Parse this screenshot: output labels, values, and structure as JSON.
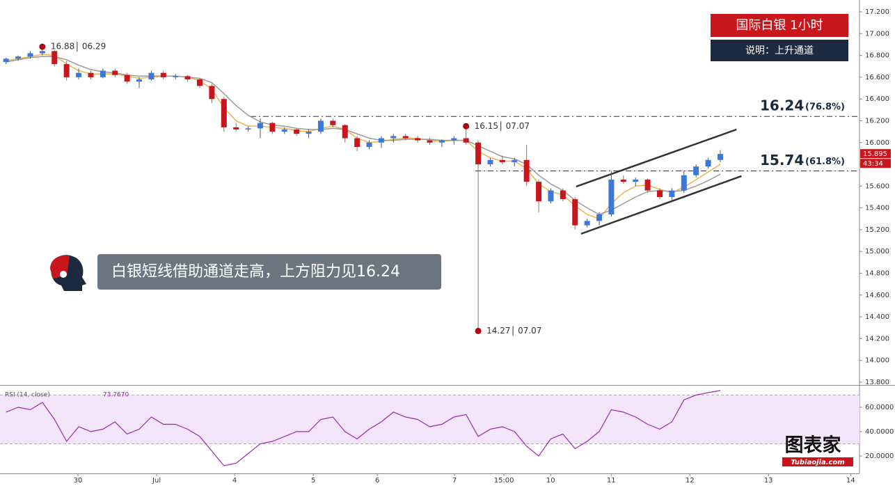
{
  "chart_data": [
    {
      "type": "candlestick",
      "xlim": [
        0,
        71
      ],
      "ylim": [
        13.774,
        17.309
      ],
      "x": [
        0.5,
        1.5,
        2.5,
        3.5,
        4.5,
        5.5,
        6.5,
        7.5,
        8.5,
        9.5,
        10.5,
        11.5,
        12.5,
        13.5,
        14.5,
        15.5,
        16.5,
        17.5,
        18.5,
        19.5,
        20.5,
        21.5,
        22.5,
        23.5,
        24.5,
        25.5,
        26.5,
        27.5,
        28.5,
        29.5,
        30.5,
        31.5,
        32.5,
        33.5,
        34.5,
        35.5,
        36.5,
        37.5,
        38.5,
        39.5,
        40.5,
        41.5,
        42.5,
        43.5,
        44.5,
        45.5,
        46.5,
        47.5,
        48.5,
        49.5,
        50.5,
        51.5,
        52.5,
        53.5,
        54.5,
        55.5,
        56.5,
        57.5,
        58.5,
        59.5
      ],
      "open": [
        16.74,
        16.77,
        16.79,
        16.82,
        16.84,
        16.72,
        16.6,
        16.64,
        16.6,
        16.66,
        16.62,
        16.56,
        16.58,
        16.64,
        16.6,
        16.61,
        16.58,
        16.52,
        16.4,
        16.14,
        16.12,
        16.13,
        16.18,
        16.1,
        16.12,
        16.08,
        16.1,
        16.2,
        16.16,
        16.04,
        15.96,
        16.0,
        16.04,
        16.06,
        16.04,
        16.02,
        16.0,
        16.02,
        16.04,
        16.0,
        15.8,
        15.84,
        15.82,
        15.84,
        15.64,
        15.46,
        15.56,
        15.48,
        15.24,
        15.28,
        15.34,
        15.66,
        15.64,
        15.66,
        15.56,
        15.5,
        15.56,
        15.7,
        15.78,
        15.84
      ],
      "high": [
        16.78,
        16.8,
        16.84,
        16.88,
        16.85,
        16.75,
        16.68,
        16.66,
        16.68,
        16.68,
        16.64,
        16.6,
        16.66,
        16.66,
        16.63,
        16.62,
        16.59,
        16.54,
        16.42,
        16.18,
        16.15,
        16.22,
        16.19,
        16.14,
        16.13,
        16.12,
        16.22,
        16.22,
        16.17,
        16.06,
        16.02,
        16.06,
        16.08,
        16.08,
        16.06,
        16.04,
        16.03,
        16.06,
        16.15,
        16.02,
        15.86,
        15.88,
        15.86,
        15.98,
        15.66,
        15.58,
        15.58,
        15.5,
        15.3,
        15.36,
        15.74,
        15.7,
        15.68,
        15.67,
        15.58,
        15.58,
        15.74,
        15.8,
        15.86,
        15.93
      ],
      "low": [
        16.72,
        16.75,
        16.77,
        16.8,
        16.7,
        16.57,
        16.58,
        16.58,
        16.59,
        16.6,
        16.54,
        16.5,
        16.57,
        16.58,
        16.58,
        16.56,
        16.5,
        16.36,
        16.1,
        16.1,
        16.1,
        16.04,
        16.08,
        16.08,
        16.06,
        16.04,
        16.08,
        16.14,
        16.0,
        15.92,
        15.94,
        15.95,
        16.0,
        16.02,
        16.0,
        15.98,
        15.96,
        15.98,
        15.98,
        14.27,
        15.78,
        15.8,
        15.78,
        15.6,
        15.36,
        15.44,
        15.46,
        15.2,
        15.22,
        15.24,
        15.32,
        15.62,
        15.6,
        15.54,
        15.48,
        15.46,
        15.54,
        15.68,
        15.76,
        15.82
      ],
      "close": [
        16.77,
        16.79,
        16.82,
        16.84,
        16.72,
        16.6,
        16.64,
        16.6,
        16.66,
        16.62,
        16.56,
        16.58,
        16.64,
        16.6,
        16.61,
        16.58,
        16.52,
        16.4,
        16.14,
        16.12,
        16.13,
        16.18,
        16.1,
        16.12,
        16.08,
        16.1,
        16.2,
        16.16,
        16.04,
        15.96,
        16.0,
        16.04,
        16.06,
        16.04,
        16.02,
        16.0,
        16.02,
        16.04,
        16.0,
        15.8,
        15.84,
        15.82,
        15.84,
        15.64,
        15.46,
        15.56,
        15.48,
        15.24,
        15.28,
        15.34,
        15.66,
        15.64,
        15.66,
        15.56,
        15.5,
        15.56,
        15.7,
        15.78,
        15.84,
        15.895
      ],
      "up_color": "#3c78d8",
      "down_color": "#c8161d",
      "series": [
        {
          "color": "#f2b34c",
          "values": [
            16.75,
            16.77,
            16.79,
            16.81,
            16.8,
            16.72,
            16.66,
            16.63,
            16.63,
            16.63,
            16.61,
            16.59,
            16.6,
            16.61,
            16.61,
            16.6,
            16.57,
            16.49,
            16.32,
            16.2,
            16.15,
            16.15,
            16.14,
            16.13,
            16.11,
            16.1,
            16.13,
            16.15,
            16.12,
            16.04,
            16.0,
            16.01,
            16.03,
            16.04,
            16.04,
            16.02,
            16.01,
            16.02,
            16.02,
            15.92,
            15.86,
            15.83,
            15.83,
            15.76,
            15.62,
            15.55,
            15.52,
            15.42,
            15.34,
            15.3,
            15.44,
            15.54,
            15.6,
            15.61,
            15.57,
            15.54,
            15.59,
            15.66,
            15.73,
            15.8
          ]
        },
        {
          "color": "#9a9a9a",
          "values": [
            16.74,
            16.76,
            16.78,
            16.79,
            16.79,
            16.76,
            16.71,
            16.67,
            16.65,
            16.64,
            16.62,
            16.61,
            16.61,
            16.61,
            16.61,
            16.6,
            16.59,
            16.55,
            16.45,
            16.34,
            16.25,
            16.19,
            16.16,
            16.15,
            16.13,
            16.12,
            16.12,
            16.13,
            16.12,
            16.08,
            16.04,
            16.02,
            16.02,
            16.03,
            16.03,
            16.03,
            16.02,
            16.02,
            16.02,
            15.97,
            15.92,
            15.87,
            15.85,
            15.8,
            15.7,
            15.62,
            15.56,
            15.47,
            15.4,
            15.34,
            15.38,
            15.44,
            15.5,
            15.55,
            15.56,
            15.55,
            15.56,
            15.6,
            15.65,
            15.71
          ]
        }
      ],
      "yticks": [
        {
          "value": 17.2,
          "label": "17.200"
        },
        {
          "value": 17.0,
          "label": "17.000"
        },
        {
          "value": 16.8,
          "label": "16.800"
        },
        {
          "value": 16.6,
          "label": "16.600"
        },
        {
          "value": 16.4,
          "label": "16.400"
        },
        {
          "value": 16.2,
          "label": "16.200"
        },
        {
          "value": 16.0,
          "label": "16.000"
        },
        {
          "value": 15.8,
          "label": "15.800"
        },
        {
          "value": 15.6,
          "label": "15.600"
        },
        {
          "value": 15.4,
          "label": "15.400"
        },
        {
          "value": 15.2,
          "label": "15.200"
        },
        {
          "value": 15.0,
          "label": "15.000"
        },
        {
          "value": 14.8,
          "label": "14.800"
        },
        {
          "value": 14.6,
          "label": "14.600"
        },
        {
          "value": 14.4,
          "label": "14.400"
        },
        {
          "value": 14.2,
          "label": "14.200"
        },
        {
          "value": 14.0,
          "label": "14.000"
        },
        {
          "value": 13.8,
          "label": "13.800"
        }
      ],
      "xticks": [
        {
          "value": 6.44,
          "label": "30"
        },
        {
          "value": 12.94,
          "label": "Jul"
        },
        {
          "value": 19.38,
          "label": "4"
        },
        {
          "value": 25.88,
          "label": "5"
        },
        {
          "value": 31.17,
          "label": "6"
        },
        {
          "value": 37.55,
          "label": "7"
        },
        {
          "value": 41.63,
          "label": "15:00"
        },
        {
          "value": 45.49,
          "label": "10"
        },
        {
          "value": 50.49,
          "label": "11"
        },
        {
          "value": 56.99,
          "label": "12"
        },
        {
          "value": 63.48,
          "label": "13"
        },
        {
          "value": 70.27,
          "label": "14"
        }
      ],
      "levels": [
        {
          "value": 16.24,
          "pct": "(76.8%)"
        },
        {
          "value": 15.74,
          "pct": "(61.8%)"
        }
      ],
      "channel": [
        {
          "x": [
            47.6,
            60.84
          ],
          "values": [
            15.596,
            16.12
          ]
        },
        {
          "x": [
            48.0,
            61.25
          ],
          "values": [
            15.162,
            15.692
          ]
        }
      ],
      "annotations": [
        {
          "candle": 3,
          "point": "high",
          "date": "06.29"
        },
        {
          "candle": 38,
          "point": "high",
          "date": "07.07"
        },
        {
          "candle": 39,
          "point": "low",
          "date": "07.07"
        }
      ],
      "countdown": "43:34"
    },
    {
      "type": "line",
      "title": "RSI (14, close)",
      "legend_value": "73.7670",
      "color": "#9c27b0",
      "ylim": [
        5.7,
        76.6
      ],
      "band": [
        30,
        70
      ],
      "values": [
        56,
        60,
        58,
        64,
        50,
        32,
        44,
        40,
        42,
        48,
        38,
        42,
        52,
        46,
        46,
        42,
        36,
        24,
        12,
        14,
        22,
        30,
        32,
        36,
        40,
        40,
        50,
        52,
        40,
        34,
        42,
        48,
        56,
        52,
        50,
        44,
        46,
        52,
        54,
        36,
        42,
        44,
        40,
        28,
        20,
        34,
        38,
        26,
        32,
        40,
        58,
        56,
        52,
        46,
        42,
        48,
        66,
        70,
        72,
        73.767
      ],
      "yticks": [
        {
          "value": 60,
          "label": "60.0000"
        },
        {
          "value": 40,
          "label": "40.0000"
        },
        {
          "value": 20,
          "label": "20.0000"
        }
      ]
    }
  ],
  "badges": {
    "title": "国际白银  1小时",
    "note": "说明：上升通道"
  },
  "caption": "白银短线借助通道走高，上方阻力见16.24",
  "watermark": {
    "name": "图表家",
    "site": "Tubiaojia.com"
  }
}
